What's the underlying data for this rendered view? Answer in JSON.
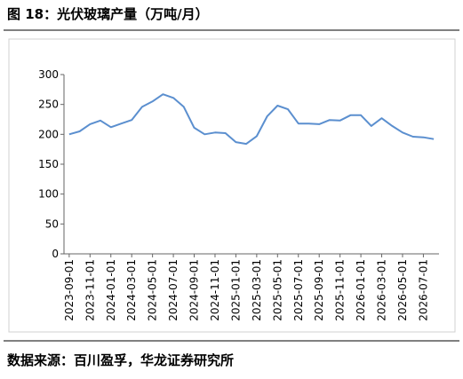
{
  "chart_data": {
    "type": "line",
    "title": "图 18：光伏玻璃产量（万吨/月）",
    "source": "数据来源：百川盈孚，华龙证券研究所",
    "categories": [
      "2023-09-01",
      null,
      "2023-11-01",
      null,
      "2024-01-01",
      null,
      "2024-03-01",
      null,
      "2024-05-01",
      null,
      "2024-07-01",
      null,
      "2024-09-01",
      null,
      "2024-11-01",
      null,
      "2025-01-01",
      null,
      "2025-03-01",
      null,
      "2025-05-01",
      null,
      "2025-07-01",
      null,
      "2025-09-01",
      null,
      "2025-11-01",
      null,
      "2026-01-01",
      null,
      "2026-03-01",
      null,
      "2026-05-01",
      null,
      "2026-07-01",
      null
    ],
    "values": [
      200,
      205,
      217,
      223,
      212,
      218,
      224,
      246,
      255,
      267,
      261,
      246,
      211,
      200,
      203,
      202,
      187,
      184,
      197,
      230,
      248,
      242,
      218,
      218,
      217,
      224,
      223,
      232,
      232,
      214,
      227,
      214,
      203,
      196,
      195,
      192
    ],
    "color": "#5b8fcf",
    "ylim": [
      0,
      300
    ],
    "yticks": [
      0,
      50,
      100,
      150,
      200,
      250,
      300
    ]
  }
}
